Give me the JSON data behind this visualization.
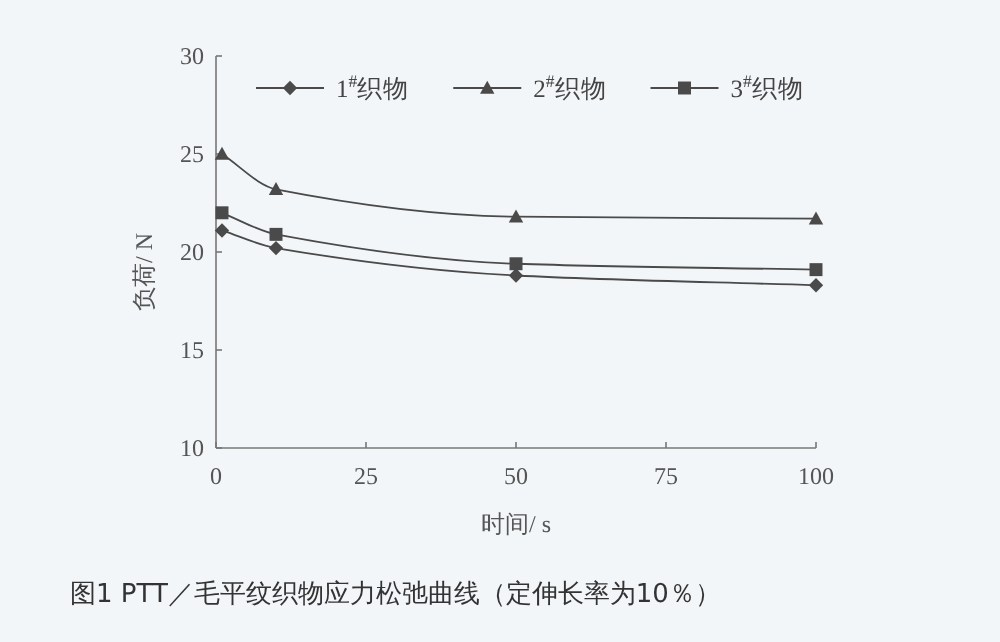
{
  "chart_data": {
    "type": "line",
    "xlabel": "时间/ s",
    "ylabel": "负荷/ N",
    "x": [
      1,
      10,
      50,
      100
    ],
    "xlim": [
      0,
      100
    ],
    "xticks": [
      0,
      25,
      50,
      75,
      100
    ],
    "ylim": [
      10,
      30
    ],
    "yticks": [
      10,
      15,
      20,
      25,
      30
    ],
    "legend": "top",
    "line_style": "solid",
    "series": [
      {
        "name": "1$^{#}$织物",
        "color": "#4a4a4a",
        "marker": "diamond",
        "values": [
          21.1,
          20.2,
          18.8,
          18.3
        ]
      },
      {
        "name": "2$^{#}$织物",
        "color": "#4a4a4a",
        "marker": "triangle",
        "values": [
          25.0,
          23.2,
          21.8,
          21.7
        ]
      },
      {
        "name": "3$^{#}$织物",
        "color": "#4a4a4a",
        "marker": "square",
        "values": [
          22.0,
          20.9,
          19.4,
          19.1
        ]
      }
    ],
    "annotations": [
      "图1  PTT／毛平纹织物应力松弛曲线（定伸长率为10％）"
    ]
  }
}
